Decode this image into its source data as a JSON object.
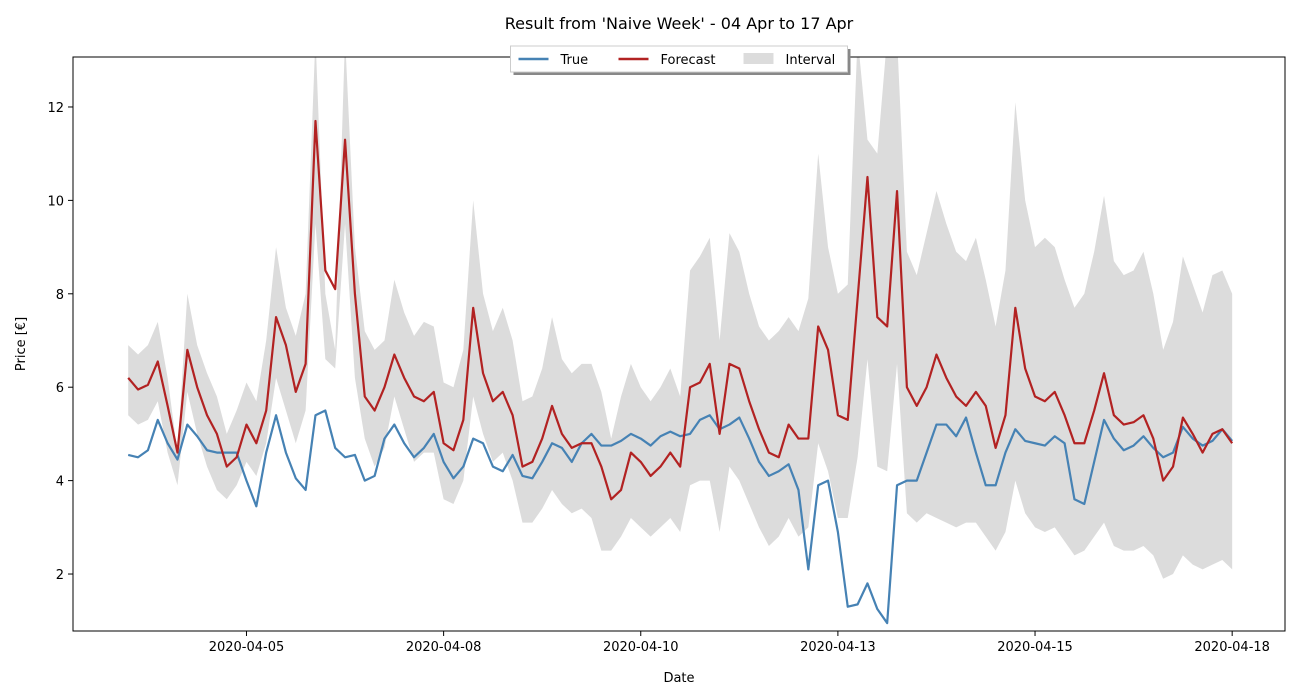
{
  "chart_data": {
    "type": "line",
    "title": "Result from 'Naive Week' - 04 Apr to 17 Apr",
    "xlabel": "Date",
    "ylabel": "Price [€]",
    "xlim": [
      3.3,
      18.67
    ],
    "ylim": [
      0.78,
      13.07
    ],
    "xticks": [
      {
        "value": 5.5,
        "label": "2020-04-05"
      },
      {
        "value": 8,
        "label": "2020-04-08"
      },
      {
        "value": 10.5,
        "label": "2020-04-10"
      },
      {
        "value": 13,
        "label": "2020-04-13"
      },
      {
        "value": 15.5,
        "label": "2020-04-15"
      },
      {
        "value": 18,
        "label": "2020-04-18"
      }
    ],
    "yticks": [
      2,
      4,
      6,
      8,
      10,
      12
    ],
    "legend": "upper center",
    "x": [
      4,
      4.125,
      4.25,
      4.375,
      4.5,
      4.625,
      4.75,
      4.875,
      5,
      5.125,
      5.25,
      5.375,
      5.5,
      5.625,
      5.75,
      5.875,
      6,
      6.125,
      6.25,
      6.375,
      6.5,
      6.625,
      6.75,
      6.875,
      7,
      7.125,
      7.25,
      7.375,
      7.5,
      7.625,
      7.75,
      7.875,
      8,
      8.125,
      8.25,
      8.375,
      8.5,
      8.625,
      8.75,
      8.875,
      9,
      9.125,
      9.25,
      9.375,
      9.5,
      9.625,
      9.75,
      9.875,
      10,
      10.125,
      10.25,
      10.375,
      10.5,
      10.625,
      10.75,
      10.875,
      11,
      11.125,
      11.25,
      11.375,
      11.5,
      11.625,
      11.75,
      11.875,
      12,
      12.125,
      12.25,
      12.375,
      12.5,
      12.625,
      12.75,
      12.875,
      13,
      13.125,
      13.25,
      13.375,
      13.5,
      13.625,
      13.75,
      13.875,
      14,
      14.125,
      14.25,
      14.375,
      14.5,
      14.625,
      14.75,
      14.875,
      15,
      15.125,
      15.25,
      15.375,
      15.5,
      15.625,
      15.75,
      15.875,
      16,
      16.125,
      16.25,
      16.375,
      16.5,
      16.625,
      16.75,
      16.875,
      17,
      17.125,
      17.25,
      17.375,
      17.5,
      17.625,
      17.75,
      17.875,
      18
    ],
    "series": [
      {
        "name": "True",
        "color": "#4682b4",
        "values": [
          4.55,
          4.5,
          4.65,
          5.3,
          4.8,
          4.45,
          5.2,
          4.95,
          4.65,
          4.6,
          4.6,
          4.6,
          4.0,
          3.45,
          4.6,
          5.4,
          4.6,
          4.05,
          3.8,
          5.4,
          5.5,
          4.7,
          4.5,
          4.55,
          4.0,
          4.1,
          4.9,
          5.2,
          4.8,
          4.5,
          4.7,
          5.0,
          4.4,
          4.05,
          4.3,
          4.9,
          4.8,
          4.3,
          4.2,
          4.55,
          4.1,
          4.05,
          4.4,
          4.8,
          4.7,
          4.4,
          4.8,
          5.0,
          4.75,
          4.75,
          4.85,
          5.0,
          4.9,
          4.75,
          4.95,
          5.05,
          4.95,
          5.0,
          5.3,
          5.4,
          5.1,
          5.2,
          5.35,
          4.9,
          4.4,
          4.1,
          4.2,
          4.35,
          3.8,
          2.1,
          3.9,
          4.0,
          2.9,
          1.3,
          1.35,
          1.8,
          1.25,
          0.95,
          3.9,
          4.0,
          4.0,
          4.6,
          5.2,
          5.2,
          4.95,
          5.35,
          4.6,
          3.9,
          3.9,
          4.6,
          5.1,
          4.85,
          4.8,
          4.75,
          4.95,
          4.8,
          3.6,
          3.5,
          4.4,
          5.3,
          4.9,
          4.65,
          4.75,
          4.95,
          4.7,
          4.5,
          4.6,
          5.15,
          4.9,
          4.75,
          4.85,
          5.1,
          4.85
        ]
      },
      {
        "name": "Forecast",
        "color": "#b22222",
        "values": [
          6.2,
          5.95,
          6.05,
          6.55,
          5.6,
          4.6,
          6.8,
          6.0,
          5.4,
          5.0,
          4.3,
          4.5,
          5.2,
          4.8,
          5.5,
          7.5,
          6.9,
          5.9,
          6.5,
          11.7,
          8.5,
          8.1,
          11.3,
          8.0,
          5.8,
          5.5,
          6.0,
          6.7,
          6.2,
          5.8,
          5.7,
          5.9,
          4.8,
          4.65,
          5.3,
          7.7,
          6.3,
          5.7,
          5.9,
          5.4,
          4.3,
          4.4,
          4.9,
          5.6,
          5.0,
          4.7,
          4.8,
          4.8,
          4.3,
          3.6,
          3.8,
          4.6,
          4.4,
          4.1,
          4.3,
          4.6,
          4.3,
          6.0,
          6.1,
          6.5,
          5.0,
          6.5,
          6.4,
          5.7,
          5.1,
          4.6,
          4.5,
          5.2,
          4.9,
          4.9,
          7.3,
          6.8,
          5.4,
          5.3,
          7.9,
          10.5,
          7.5,
          7.3,
          10.2,
          6.0,
          5.6,
          6.0,
          6.7,
          6.2,
          5.8,
          5.6,
          5.9,
          5.6,
          4.7,
          5.4,
          7.7,
          6.4,
          5.8,
          5.7,
          5.9,
          5.4,
          4.8,
          4.8,
          5.5,
          6.3,
          5.4,
          5.2,
          5.25,
          5.4,
          4.9,
          4.0,
          4.3,
          5.35,
          5.0,
          4.6,
          5.0,
          5.1,
          4.8
        ]
      },
      {
        "name": "Interval",
        "color": "#dcdcdc",
        "values": [
          6.9,
          6.7,
          6.9,
          7.4,
          6.2,
          4.6,
          8.0,
          6.9,
          6.3,
          5.8,
          5.0,
          5.5,
          6.1,
          5.7,
          7.0,
          9.0,
          7.7,
          7.1,
          8.0,
          13.5,
          8.0,
          6.8,
          13.5,
          9.0,
          7.2,
          6.8,
          7.0,
          8.3,
          7.6,
          7.1,
          7.4,
          7.3,
          6.1,
          6.0,
          6.8,
          10.0,
          8.0,
          7.2,
          7.7,
          7.0,
          5.7,
          5.8,
          6.4,
          7.5,
          6.6,
          6.3,
          6.5,
          6.5,
          5.9,
          4.9,
          5.8,
          6.5,
          6.0,
          5.7,
          6.0,
          6.4,
          5.8,
          8.5,
          8.8,
          9.2,
          7.0,
          9.3,
          8.9,
          8.0,
          7.3,
          7.0,
          7.2,
          7.5,
          7.2,
          7.9,
          11.0,
          9.0,
          8.0,
          8.2,
          13.5,
          11.3,
          11.0,
          13.5,
          13.5,
          8.9,
          8.4,
          9.3,
          10.2,
          9.5,
          8.9,
          8.7,
          9.2,
          8.3,
          7.3,
          8.5,
          12.1,
          10.0,
          9.0,
          9.2,
          9.0,
          8.3,
          7.7,
          8.0,
          8.9,
          10.1,
          8.7,
          8.4,
          8.5,
          8.9,
          8.0,
          6.8,
          7.4,
          8.8,
          8.2,
          7.6,
          8.4,
          8.5,
          8.0
        ],
        "lower": [
          5.4,
          5.2,
          5.3,
          5.7,
          4.6,
          3.9,
          5.9,
          5.0,
          4.3,
          3.8,
          3.6,
          3.9,
          4.4,
          4.1,
          4.8,
          6.2,
          5.5,
          4.8,
          5.5,
          9.5,
          6.6,
          6.4,
          9.5,
          6.2,
          4.9,
          4.3,
          4.7,
          5.8,
          5.1,
          4.4,
          4.6,
          4.6,
          3.6,
          3.5,
          4.0,
          5.8,
          5.0,
          4.4,
          4.6,
          4.0,
          3.1,
          3.1,
          3.4,
          3.8,
          3.5,
          3.3,
          3.4,
          3.2,
          2.5,
          2.5,
          2.8,
          3.2,
          3.0,
          2.8,
          3.0,
          3.2,
          2.9,
          3.9,
          4.0,
          4.0,
          2.9,
          4.3,
          4.0,
          3.5,
          3.0,
          2.6,
          2.8,
          3.2,
          2.8,
          3.0,
          4.8,
          4.2,
          3.2,
          3.2,
          4.5,
          6.6,
          4.3,
          4.2,
          6.5,
          3.3,
          3.1,
          3.3,
          3.2,
          3.1,
          3.0,
          3.1,
          3.1,
          2.8,
          2.5,
          2.9,
          4.0,
          3.3,
          3.0,
          2.9,
          3.0,
          2.7,
          2.4,
          2.5,
          2.8,
          3.1,
          2.6,
          2.5,
          2.5,
          2.6,
          2.4,
          1.9,
          2.0,
          2.4,
          2.2,
          2.1,
          2.2,
          2.3,
          2.1
        ]
      }
    ]
  }
}
